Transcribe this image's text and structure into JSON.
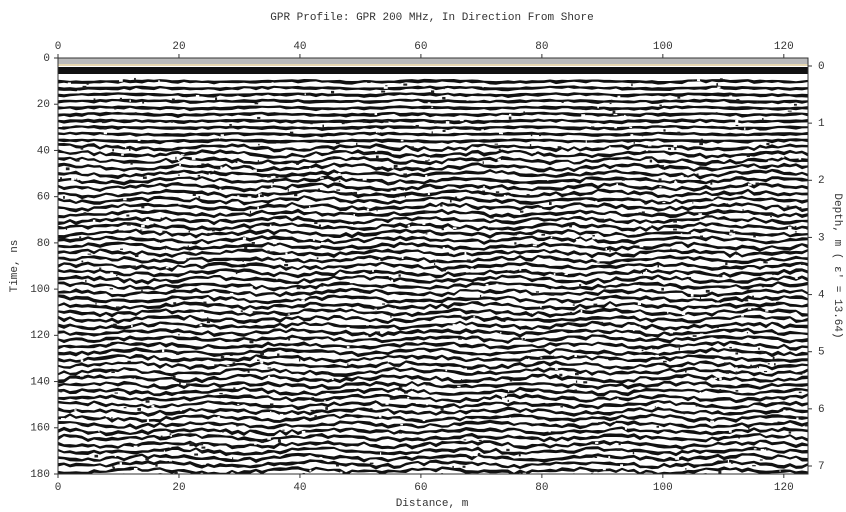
{
  "chart_data": {
    "type": "radargram",
    "title": "GPR Profile: GPR 200 MHz, In Direction From Shore",
    "x_label": "Distance, m",
    "y_label": "Time, ns",
    "y2_label": "Depth, m ( ε' = 13.64)",
    "xlim": [
      0,
      124
    ],
    "xticks": [
      0,
      20,
      40,
      60,
      80,
      100,
      120
    ],
    "ylim": [
      0,
      180
    ],
    "yticks": [
      0,
      20,
      40,
      60,
      80,
      100,
      120,
      140,
      160,
      180
    ],
    "y2lim": [
      -0.14,
      7.14
    ],
    "y2ticks": [
      0,
      1,
      2,
      3,
      4,
      5,
      6,
      7
    ]
  }
}
